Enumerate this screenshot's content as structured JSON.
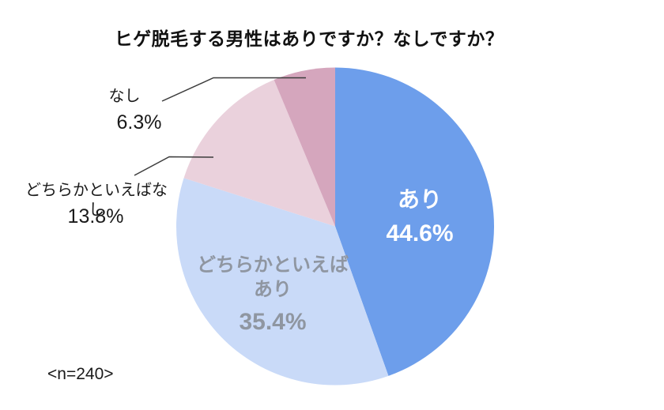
{
  "title": "ヒゲ脱毛する男性はありですか？なしですか？",
  "sample_note": "<n=240>",
  "chart_data": {
    "type": "pie",
    "title": "ヒゲ脱毛する男性はありですか？なしですか？",
    "n": 240,
    "start_angle_deg": 0,
    "direction": "clockwise",
    "legend_position": "none",
    "grid": false,
    "slices": [
      {
        "label": "あり",
        "value": 44.6,
        "pct": "44.6%",
        "color": "#6d9eeb",
        "text_color": "#ffffff",
        "label_placement": "inside"
      },
      {
        "label": "どちらかといえばあり",
        "value": 35.4,
        "pct": "35.4%",
        "color": "#c9daf8",
        "text_color": "#8f96a1",
        "label_placement": "inside"
      },
      {
        "label": "どちらかといえばなし",
        "value": 13.8,
        "pct": "13.8%",
        "color": "#ead1dc",
        "text_color": "#1a1a1a",
        "label_placement": "outside"
      },
      {
        "label": "なし",
        "value": 6.3,
        "pct": "6.3%",
        "color": "#d5a6bd",
        "text_color": "#1a1a1a",
        "label_placement": "outside"
      }
    ],
    "leader_line_color": "#3c3c3c"
  }
}
